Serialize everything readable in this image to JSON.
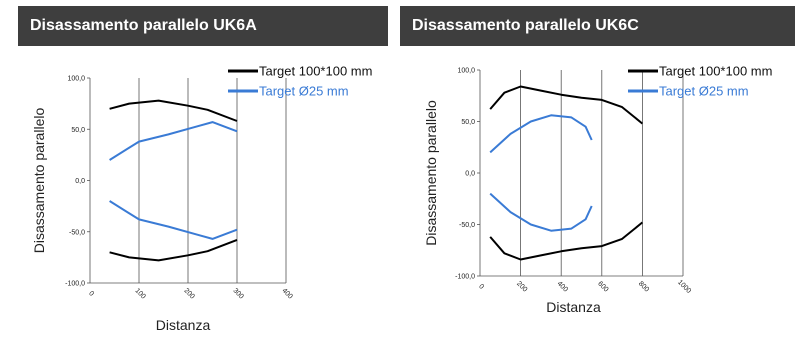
{
  "chart_data": [
    {
      "type": "line",
      "title": "Disassamento parallelo UK6A",
      "xlabel": "Distanza",
      "ylabel": "Disassamento parallelo",
      "xlim": [
        0,
        400
      ],
      "ylim": [
        -100,
        100
      ],
      "xticks": [
        "0",
        "100",
        "200",
        "300",
        "400"
      ],
      "yticks": [
        "100,0",
        "50,0",
        "0,0",
        "-50,0",
        "-100,0"
      ],
      "grid": "vertical",
      "legend_position": "top-right",
      "series": [
        {
          "name": "Target 100*100 mm",
          "color": "#000000",
          "x": [
            40,
            80,
            140,
            200,
            240,
            300
          ],
          "y": [
            70,
            75,
            78,
            73,
            69,
            58
          ]
        },
        {
          "name": "",
          "color": "#000000",
          "x": [
            40,
            80,
            140,
            200,
            240,
            300
          ],
          "y": [
            -70,
            -75,
            -78,
            -73,
            -69,
            -58
          ]
        },
        {
          "name": "Target Ø25 mm",
          "color": "#3a7bd5",
          "x": [
            40,
            100,
            160,
            220,
            250,
            300
          ],
          "y": [
            20,
            38,
            45,
            53,
            57,
            48
          ]
        },
        {
          "name": "",
          "color": "#3a7bd5",
          "x": [
            40,
            100,
            160,
            220,
            250,
            300
          ],
          "y": [
            -20,
            -38,
            -45,
            -53,
            -57,
            -48
          ]
        }
      ]
    },
    {
      "type": "line",
      "title": "Disassamento parallelo UK6C",
      "xlabel": "Distanza",
      "ylabel": "Disassamento parallelo",
      "xlim": [
        0,
        1000
      ],
      "ylim": [
        -100,
        100
      ],
      "xticks": [
        "0",
        "200",
        "400",
        "600",
        "800",
        "1000"
      ],
      "yticks": [
        "100,0",
        "50,0",
        "0,0",
        "-50,0",
        "-100,0"
      ],
      "grid": "vertical",
      "legend_position": "top-right",
      "series": [
        {
          "name": "Target 100*100 mm",
          "color": "#000000",
          "x": [
            50,
            120,
            200,
            300,
            400,
            500,
            600,
            700,
            800
          ],
          "y": [
            62,
            78,
            84,
            80,
            76,
            73,
            71,
            64,
            48
          ]
        },
        {
          "name": "",
          "color": "#000000",
          "x": [
            50,
            120,
            200,
            300,
            400,
            500,
            600,
            700,
            800
          ],
          "y": [
            -62,
            -78,
            -84,
            -80,
            -76,
            -73,
            -71,
            -64,
            -48
          ]
        },
        {
          "name": "Target Ø25 mm",
          "color": "#3a7bd5",
          "x": [
            50,
            150,
            250,
            350,
            450,
            520,
            550
          ],
          "y": [
            20,
            38,
            50,
            56,
            54,
            45,
            32
          ]
        },
        {
          "name": "",
          "color": "#3a7bd5",
          "x": [
            50,
            150,
            250,
            350,
            450,
            520,
            550
          ],
          "y": [
            -20,
            -38,
            -50,
            -56,
            -54,
            -45,
            -32
          ]
        }
      ]
    }
  ]
}
